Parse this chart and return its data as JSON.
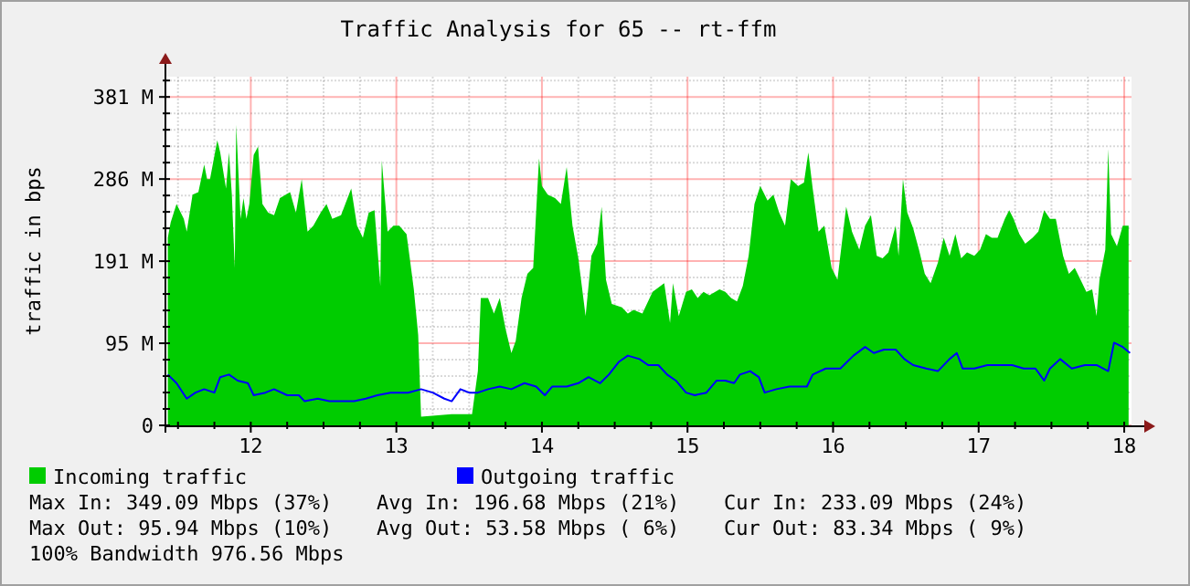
{
  "chart_data": {
    "type": "area",
    "title": "Traffic Analysis for 65 -- rt-ffm",
    "ylabel": "traffic in bps",
    "xlim": [
      11.42,
      18.05
    ],
    "xticks": [
      {
        "value": 11.5,
        "label": null
      },
      {
        "value": 11.75,
        "label": null
      },
      12,
      {
        "value": 12.25,
        "label": null
      },
      {
        "value": 12.5,
        "label": null
      },
      {
        "value": 12.75,
        "label": null
      },
      13,
      {
        "value": 13.25,
        "label": null
      },
      {
        "value": 13.5,
        "label": null
      },
      {
        "value": 13.75,
        "label": null
      },
      14,
      {
        "value": 14.25,
        "label": null
      },
      {
        "value": 14.5,
        "label": null
      },
      {
        "value": 14.75,
        "label": null
      },
      15,
      {
        "value": 15.25,
        "label": null
      },
      {
        "value": 15.5,
        "label": null
      },
      {
        "value": 15.75,
        "label": null
      },
      16,
      {
        "value": 16.25,
        "label": null
      },
      {
        "value": 16.5,
        "label": null
      },
      {
        "value": 16.75,
        "label": null
      },
      17,
      {
        "value": 17.25,
        "label": null
      },
      {
        "value": 17.5,
        "label": null
      },
      {
        "value": 17.75,
        "label": null
      },
      18
    ],
    "ylim": [
      0,
      405
    ],
    "yticks": [
      {
        "value": 0,
        "label": "0"
      },
      {
        "value": 19.07,
        "label": null
      },
      {
        "value": 38.15,
        "label": null
      },
      {
        "value": 57.22,
        "label": null
      },
      {
        "value": 76.29,
        "label": null
      },
      {
        "value": 95.37,
        "label": "95 M"
      },
      {
        "value": 114.44,
        "label": null
      },
      {
        "value": 133.51,
        "label": null
      },
      {
        "value": 152.59,
        "label": null
      },
      {
        "value": 171.66,
        "label": null
      },
      {
        "value": 190.73,
        "label": "191 M"
      },
      {
        "value": 209.81,
        "label": null
      },
      {
        "value": 228.88,
        "label": null
      },
      {
        "value": 247.96,
        "label": null
      },
      {
        "value": 267.03,
        "label": null
      },
      {
        "value": 286.1,
        "label": "286 M"
      },
      {
        "value": 305.18,
        "label": null
      },
      {
        "value": 324.25,
        "label": null
      },
      {
        "value": 343.32,
        "label": null
      },
      {
        "value": 362.4,
        "label": null
      },
      {
        "value": 381.47,
        "label": "381 M"
      },
      {
        "value": 400.54,
        "label": null
      }
    ],
    "grid": true,
    "legend": "bottom",
    "series": [
      {
        "name": "Incoming traffic",
        "color": "#00cc00",
        "x": [
          11.43,
          11.45,
          11.49,
          11.54,
          11.56,
          11.6,
          11.64,
          11.68,
          11.7,
          11.72,
          11.77,
          11.79,
          11.83,
          11.85,
          11.87,
          11.89,
          11.9,
          11.93,
          11.95,
          11.97,
          11.99,
          12.02,
          12.05,
          12.08,
          12.12,
          12.16,
          12.2,
          12.27,
          12.31,
          12.35,
          12.39,
          12.43,
          12.48,
          12.52,
          12.56,
          12.62,
          12.69,
          12.73,
          12.77,
          12.81,
          12.85,
          12.89,
          12.9,
          12.94,
          12.98,
          13.02,
          13.07,
          13.09,
          13.12,
          13.15,
          13.17,
          13.38,
          13.52,
          13.56,
          13.58,
          13.63,
          13.67,
          13.71,
          13.75,
          13.79,
          13.82,
          13.86,
          13.9,
          13.94,
          13.98,
          14.0,
          14.04,
          14.09,
          14.13,
          14.17,
          14.21,
          14.25,
          14.3,
          14.34,
          14.38,
          14.41,
          14.44,
          14.48,
          14.55,
          14.59,
          14.63,
          14.69,
          14.76,
          14.84,
          14.88,
          14.9,
          14.94,
          14.99,
          15.03,
          15.07,
          15.11,
          15.15,
          15.22,
          15.26,
          15.3,
          15.34,
          15.38,
          15.42,
          15.46,
          15.5,
          15.55,
          15.59,
          15.63,
          15.67,
          15.71,
          15.76,
          15.8,
          15.83,
          15.86,
          15.9,
          15.94,
          15.99,
          16.03,
          16.09,
          16.13,
          16.18,
          16.22,
          16.26,
          16.3,
          16.34,
          16.38,
          16.43,
          16.45,
          16.48,
          16.51,
          16.55,
          16.59,
          16.63,
          16.67,
          16.72,
          16.76,
          16.8,
          16.84,
          16.88,
          16.92,
          16.97,
          17.01,
          17.05,
          17.09,
          17.13,
          17.18,
          17.21,
          17.24,
          17.28,
          17.32,
          17.37,
          17.41,
          17.45,
          17.49,
          17.53,
          17.58,
          17.62,
          17.66,
          17.7,
          17.74,
          17.78,
          17.81,
          17.83,
          17.87,
          17.89,
          17.91,
          17.95,
          17.99,
          18.03
        ],
        "values": [
          218,
          236,
          257,
          240,
          225,
          268,
          271,
          303,
          286,
          286,
          331,
          317,
          275,
          317,
          268,
          183,
          349,
          240,
          264,
          240,
          257,
          314,
          324,
          257,
          247,
          244,
          264,
          271,
          247,
          286,
          225,
          232,
          247,
          257,
          240,
          244,
          275,
          232,
          218,
          247,
          250,
          162,
          308,
          225,
          232,
          232,
          222,
          197,
          158,
          105,
          10,
          13,
          13,
          63,
          148,
          148,
          130,
          148,
          112,
          84,
          98,
          148,
          176,
          183,
          310,
          278,
          268,
          264,
          257,
          300,
          232,
          194,
          127,
          197,
          211,
          254,
          169,
          141,
          137,
          130,
          134,
          130,
          155,
          165,
          119,
          165,
          127,
          155,
          158,
          148,
          155,
          151,
          158,
          155,
          148,
          144,
          162,
          197,
          257,
          278,
          261,
          268,
          247,
          232,
          286,
          278,
          282,
          317,
          275,
          225,
          232,
          183,
          169,
          254,
          225,
          204,
          232,
          244,
          197,
          194,
          201,
          232,
          197,
          286,
          247,
          229,
          204,
          176,
          165,
          189,
          218,
          197,
          222,
          194,
          201,
          197,
          204,
          222,
          218,
          218,
          240,
          250,
          240,
          222,
          211,
          218,
          225,
          250,
          240,
          240,
          197,
          176,
          183,
          169,
          155,
          158,
          127,
          169,
          204,
          321,
          222,
          208,
          232,
          232
        ]
      },
      {
        "name": "Outgoing traffic",
        "type": "line",
        "color": "#0000ff",
        "x": [
          11.43,
          11.49,
          11.56,
          11.62,
          11.68,
          11.75,
          11.79,
          11.85,
          11.91,
          11.98,
          12.02,
          12.1,
          12.16,
          12.25,
          12.33,
          12.37,
          12.46,
          12.54,
          12.62,
          12.71,
          12.79,
          12.87,
          12.96,
          13.08,
          13.17,
          13.25,
          13.33,
          13.38,
          13.44,
          13.5,
          13.56,
          13.63,
          13.71,
          13.79,
          13.88,
          13.96,
          14.02,
          14.07,
          14.17,
          14.25,
          14.32,
          14.4,
          14.46,
          14.53,
          14.59,
          14.67,
          14.73,
          14.8,
          14.86,
          14.92,
          14.99,
          15.05,
          15.13,
          15.2,
          15.26,
          15.32,
          15.36,
          15.43,
          15.49,
          15.53,
          15.61,
          15.7,
          15.82,
          15.86,
          15.95,
          16.05,
          16.14,
          16.22,
          16.28,
          16.35,
          16.43,
          16.49,
          16.55,
          16.64,
          16.72,
          16.8,
          16.85,
          16.89,
          16.97,
          17.06,
          17.14,
          17.23,
          17.31,
          17.39,
          17.45,
          17.49,
          17.56,
          17.64,
          17.73,
          17.81,
          17.89,
          17.93,
          17.99,
          18.04
        ],
        "values": [
          59,
          49,
          31,
          38,
          42,
          38,
          56,
          59,
          52,
          49,
          35,
          38,
          42,
          35,
          35,
          28,
          31,
          28,
          28,
          28,
          31,
          35,
          38,
          38,
          42,
          38,
          31,
          28,
          42,
          38,
          38,
          42,
          45,
          42,
          49,
          45,
          35,
          45,
          45,
          49,
          56,
          49,
          59,
          74,
          81,
          77,
          70,
          70,
          59,
          52,
          38,
          35,
          38,
          52,
          52,
          49,
          59,
          63,
          56,
          38,
          42,
          45,
          45,
          59,
          66,
          66,
          81,
          91,
          84,
          88,
          88,
          77,
          70,
          66,
          63,
          77,
          84,
          66,
          66,
          70,
          70,
          70,
          66,
          66,
          52,
          66,
          77,
          66,
          70,
          70,
          63,
          96,
          91,
          84
        ]
      }
    ],
    "annotations": [
      "Max In: 349.09 Mbps (37%)",
      "Avg In: 196.68 Mbps (21%)",
      "Cur In: 233.09 Mbps (24%)",
      "Max Out: 95.94 Mbps (10%)",
      "Avg Out: 53.58 Mbps ( 6%)",
      "Cur Out: 83.34 Mbps ( 9%)",
      "100% Bandwidth 976.56 Mbps"
    ]
  }
}
